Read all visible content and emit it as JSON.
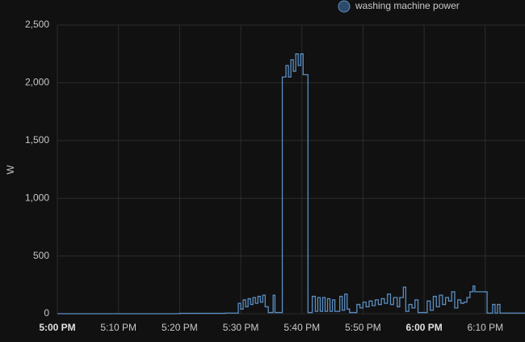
{
  "chart_data": {
    "type": "line",
    "y_label": "W",
    "series": [
      {
        "name": "washing machine power",
        "color": "#5b8fc4",
        "x": [
          0,
          20,
          27.5,
          29.5,
          29.6,
          30,
          30.4,
          30.8,
          31.2,
          31.6,
          32,
          32.4,
          32.8,
          33.2,
          33.6,
          34,
          34.5,
          35,
          35.3,
          35.6,
          36.6,
          36.8,
          37.4,
          37.8,
          38.2,
          38.6,
          39,
          39.4,
          39.8,
          40.2,
          40.8,
          41,
          41.6,
          41.7,
          42.2,
          42.6,
          43,
          43.4,
          43.8,
          44.2,
          44.6,
          45,
          45.4,
          46.2,
          46.6,
          47,
          47.4,
          47.8,
          48.8,
          49,
          49.5,
          50,
          50.5,
          51,
          51.5,
          52,
          52.5,
          53,
          53.5,
          54,
          54.5,
          55,
          55.6,
          56,
          56.6,
          57,
          57.5,
          58,
          58.5,
          59,
          60,
          60.5,
          61,
          61.5,
          62,
          62.5,
          63,
          63.5,
          64,
          64.5,
          65,
          65.5,
          66,
          66.5,
          67,
          67.5,
          68,
          68.3,
          70,
          70.3,
          71,
          71.2,
          71.6,
          72,
          72.4,
          76.5
        ],
        "values": [
          0,
          3,
          5,
          5,
          90,
          40,
          120,
          60,
          130,
          80,
          140,
          90,
          150,
          100,
          160,
          60,
          10,
          10,
          160,
          10,
          10,
          2050,
          2150,
          2050,
          2200,
          2100,
          2250,
          2150,
          2250,
          2070,
          2070,
          10,
          10,
          150,
          20,
          140,
          20,
          140,
          20,
          130,
          20,
          120,
          20,
          150,
          30,
          170,
          40,
          10,
          10,
          80,
          50,
          100,
          60,
          110,
          70,
          120,
          80,
          130,
          90,
          170,
          80,
          140,
          60,
          140,
          230,
          20,
          80,
          50,
          120,
          10,
          10,
          110,
          30,
          150,
          60,
          160,
          80,
          140,
          110,
          190,
          50,
          120,
          90,
          100,
          140,
          190,
          240,
          190,
          190,
          5,
          5,
          80,
          5,
          80,
          5,
          5
        ]
      }
    ],
    "xlim": [
      0,
      76.5
    ],
    "xticks": [
      {
        "value": 0,
        "label": "5:00 PM"
      },
      {
        "value": 10,
        "label": "5:10 PM"
      },
      {
        "value": 20,
        "label": "5:20 PM"
      },
      {
        "value": 30,
        "label": "5:30 PM"
      },
      {
        "value": 40,
        "label": "5:40 PM"
      },
      {
        "value": 50,
        "label": "5:50 PM"
      },
      {
        "value": 60,
        "label": "6:00 PM"
      },
      {
        "value": 70,
        "label": "6:10 PM"
      }
    ],
    "ylim": [
      0,
      2500
    ],
    "yticks": [
      0,
      500,
      {
        "value": 1000,
        "label": "1,000"
      },
      {
        "value": 1500,
        "label": "1,500"
      },
      {
        "value": 2000,
        "label": "2,000"
      },
      {
        "value": 2500,
        "label": "2,500"
      }
    ],
    "grid": true
  }
}
